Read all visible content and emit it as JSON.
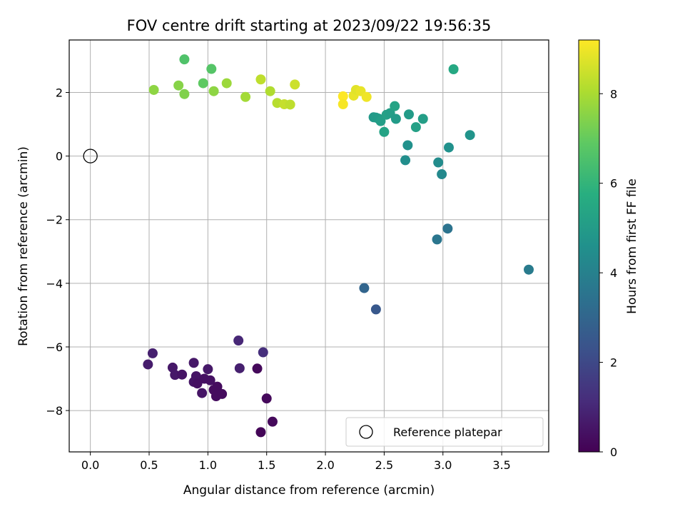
{
  "chart_data": {
    "type": "scatter",
    "title": "FOV centre drift starting at 2023/09/22 19:56:35",
    "xlabel": "Angular distance from reference (arcmin)",
    "ylabel": "Rotation from reference (arcmin)",
    "colorbar_label": "Hours from first FF file",
    "xlim": [
      -0.18,
      3.9
    ],
    "ylim": [
      -9.3,
      3.65
    ],
    "clim": [
      0,
      9.2
    ],
    "grid": true,
    "legend_position": "lower-right",
    "x_ticks": [
      0.0,
      0.5,
      1.0,
      1.5,
      2.0,
      2.5,
      3.0,
      3.5
    ],
    "x_tick_labels": [
      "0.0",
      "0.5",
      "1.0",
      "1.5",
      "2.0",
      "2.5",
      "3.0",
      "3.5"
    ],
    "y_ticks": [
      -8,
      -6,
      -4,
      -2,
      0,
      2
    ],
    "y_tick_labels": [
      "−8",
      "−6",
      "−4",
      "−2",
      "0",
      "2"
    ],
    "colorbar_ticks": [
      0,
      2,
      4,
      6,
      8
    ],
    "colorbar_tick_labels": [
      "0",
      "2",
      "4",
      "6",
      "8"
    ],
    "reference": {
      "name": "Reference platepar",
      "x": 0.0,
      "y": 0.0
    },
    "points": [
      {
        "x": 0.49,
        "y": -6.55,
        "t": 0.7
      },
      {
        "x": 0.53,
        "y": -6.2,
        "t": 0.8
      },
      {
        "x": 0.7,
        "y": -6.65,
        "t": 0.6
      },
      {
        "x": 0.72,
        "y": -6.88,
        "t": 0.6
      },
      {
        "x": 0.78,
        "y": -6.87,
        "t": 0.5
      },
      {
        "x": 0.88,
        "y": -6.5,
        "t": 0.6
      },
      {
        "x": 0.88,
        "y": -7.1,
        "t": 0.5
      },
      {
        "x": 0.9,
        "y": -6.92,
        "t": 0.5
      },
      {
        "x": 0.91,
        "y": -7.15,
        "t": 0.4
      },
      {
        "x": 0.95,
        "y": -7.45,
        "t": 0.5
      },
      {
        "x": 0.97,
        "y": -7.0,
        "t": 0.4
      },
      {
        "x": 1.0,
        "y": -6.7,
        "t": 0.6
      },
      {
        "x": 1.02,
        "y": -7.05,
        "t": 0.4
      },
      {
        "x": 1.05,
        "y": -7.35,
        "t": 0.3
      },
      {
        "x": 1.07,
        "y": -7.55,
        "t": 0.3
      },
      {
        "x": 1.08,
        "y": -7.25,
        "t": 0.3
      },
      {
        "x": 1.12,
        "y": -7.48,
        "t": 0.3
      },
      {
        "x": 1.26,
        "y": -5.8,
        "t": 1.0
      },
      {
        "x": 1.27,
        "y": -6.67,
        "t": 0.8
      },
      {
        "x": 1.42,
        "y": -6.68,
        "t": 0.2
      },
      {
        "x": 1.45,
        "y": -8.68,
        "t": 0.1
      },
      {
        "x": 1.47,
        "y": -6.17,
        "t": 1.2
      },
      {
        "x": 1.5,
        "y": -7.62,
        "t": 0.2
      },
      {
        "x": 1.55,
        "y": -8.35,
        "t": 0.2
      },
      {
        "x": 2.33,
        "y": -4.15,
        "t": 3.0
      },
      {
        "x": 2.43,
        "y": -4.82,
        "t": 2.5
      },
      {
        "x": 2.95,
        "y": -2.62,
        "t": 3.6
      },
      {
        "x": 3.04,
        "y": -2.28,
        "t": 3.5
      },
      {
        "x": 3.73,
        "y": -3.57,
        "t": 3.8
      },
      {
        "x": 2.68,
        "y": -0.13,
        "t": 4.5
      },
      {
        "x": 2.7,
        "y": 0.34,
        "t": 4.6
      },
      {
        "x": 2.96,
        "y": -0.2,
        "t": 4.4
      },
      {
        "x": 2.99,
        "y": -0.57,
        "t": 4.3
      },
      {
        "x": 3.05,
        "y": 0.27,
        "t": 4.6
      },
      {
        "x": 3.23,
        "y": 0.66,
        "t": 4.7
      },
      {
        "x": 2.41,
        "y": 1.22,
        "t": 4.9
      },
      {
        "x": 2.43,
        "y": 1.21,
        "t": 5.0
      },
      {
        "x": 2.45,
        "y": 1.18,
        "t": 5.0
      },
      {
        "x": 2.47,
        "y": 1.1,
        "t": 5.1
      },
      {
        "x": 2.5,
        "y": 0.76,
        "t": 5.3
      },
      {
        "x": 2.52,
        "y": 1.3,
        "t": 5.2
      },
      {
        "x": 2.55,
        "y": 1.35,
        "t": 5.1
      },
      {
        "x": 2.59,
        "y": 1.57,
        "t": 5.3
      },
      {
        "x": 2.6,
        "y": 1.17,
        "t": 5.0
      },
      {
        "x": 2.71,
        "y": 1.31,
        "t": 5.0
      },
      {
        "x": 2.77,
        "y": 0.91,
        "t": 5.2
      },
      {
        "x": 2.83,
        "y": 1.17,
        "t": 5.1
      },
      {
        "x": 3.09,
        "y": 2.73,
        "t": 5.5
      },
      {
        "x": 0.8,
        "y": 3.04,
        "t": 6.6
      },
      {
        "x": 1.03,
        "y": 2.74,
        "t": 6.7
      },
      {
        "x": 0.96,
        "y": 2.29,
        "t": 6.9
      },
      {
        "x": 0.54,
        "y": 2.08,
        "t": 7.6
      },
      {
        "x": 0.75,
        "y": 2.22,
        "t": 7.5
      },
      {
        "x": 0.8,
        "y": 1.95,
        "t": 7.4
      },
      {
        "x": 1.05,
        "y": 2.04,
        "t": 7.6
      },
      {
        "x": 1.16,
        "y": 2.29,
        "t": 7.8
      },
      {
        "x": 1.32,
        "y": 1.86,
        "t": 7.9
      },
      {
        "x": 1.45,
        "y": 2.41,
        "t": 8.3
      },
      {
        "x": 1.53,
        "y": 2.04,
        "t": 8.1
      },
      {
        "x": 1.59,
        "y": 1.67,
        "t": 8.2
      },
      {
        "x": 1.65,
        "y": 1.63,
        "t": 8.4
      },
      {
        "x": 1.7,
        "y": 1.62,
        "t": 8.3
      },
      {
        "x": 1.74,
        "y": 2.25,
        "t": 8.5
      },
      {
        "x": 2.15,
        "y": 1.88,
        "t": 9.2
      },
      {
        "x": 2.15,
        "y": 1.63,
        "t": 9.1
      },
      {
        "x": 2.24,
        "y": 1.9,
        "t": 8.9
      },
      {
        "x": 2.26,
        "y": 2.08,
        "t": 8.8
      },
      {
        "x": 2.3,
        "y": 2.04,
        "t": 8.9
      },
      {
        "x": 2.35,
        "y": 1.86,
        "t": 9.0
      }
    ]
  }
}
